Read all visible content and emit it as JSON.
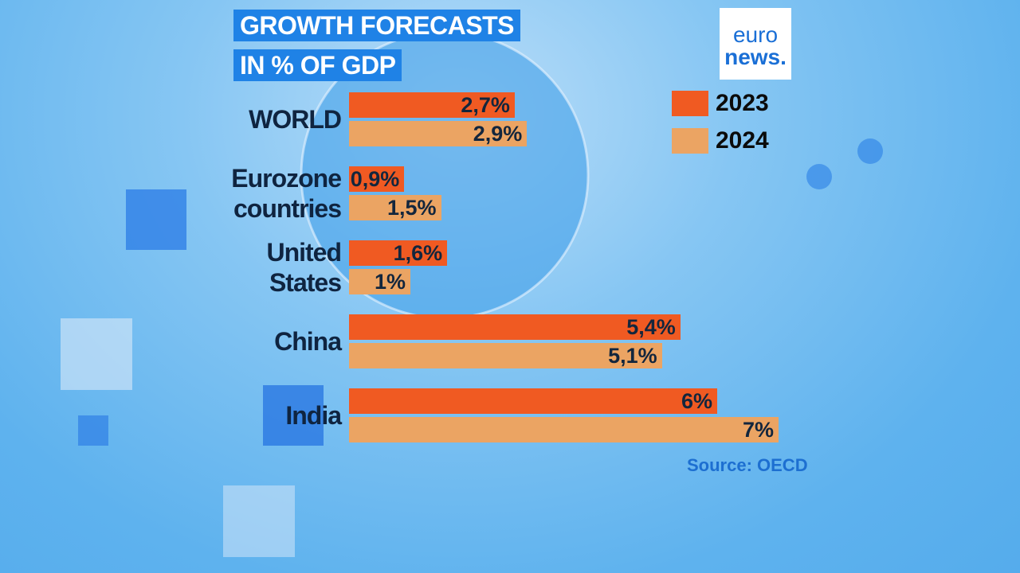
{
  "chart_data": {
    "type": "bar",
    "orientation": "horizontal",
    "title": "GROWTH FORECASTS",
    "subtitle": "IN % OF GDP",
    "logo": [
      "euro",
      "news."
    ],
    "source": "Source: OECD",
    "categories": [
      "WORLD",
      "Eurozone countries",
      "United States",
      "China",
      "India"
    ],
    "series": [
      {
        "name": "2023",
        "color": "#f05a22",
        "values": [
          2.7,
          0.9,
          1.6,
          5.4,
          6
        ],
        "value_labels": [
          "2,7%",
          "0,9%",
          "1,6%",
          "5,4%",
          "6%"
        ]
      },
      {
        "name": "2024",
        "color": "#eba463",
        "values": [
          2.9,
          1.5,
          1,
          5.1,
          7
        ],
        "value_labels": [
          "2,9%",
          "1,5%",
          "1%",
          "5,1%",
          "7%"
        ]
      }
    ],
    "legend": "upper right"
  }
}
